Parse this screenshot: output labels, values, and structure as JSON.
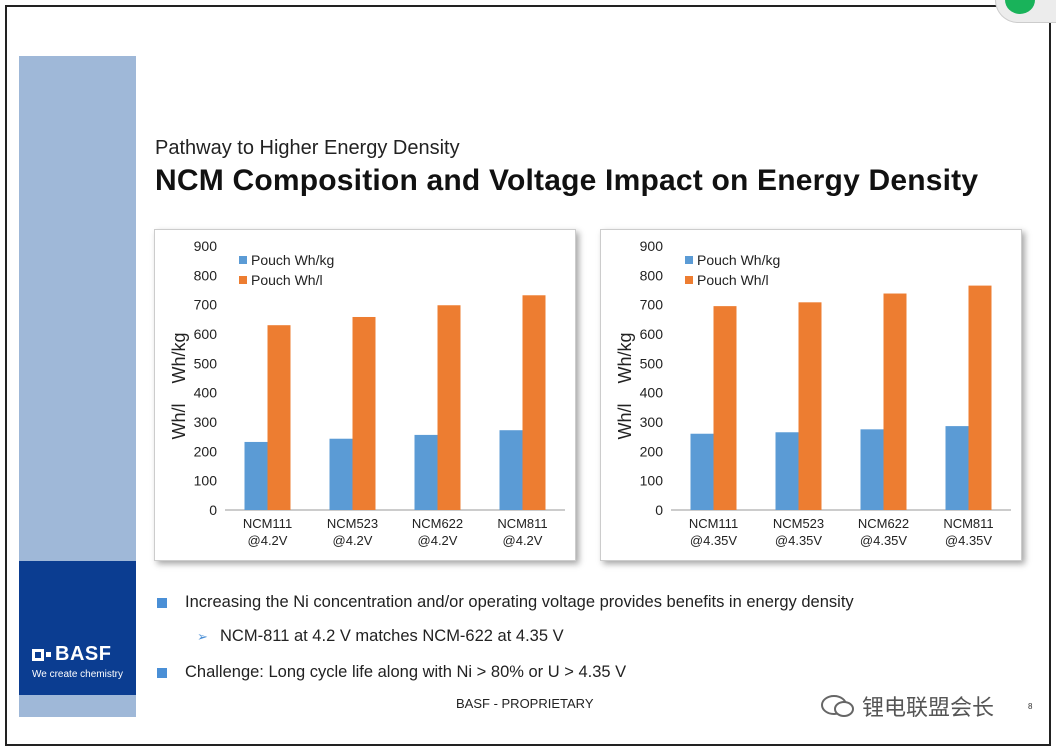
{
  "slide": {
    "subtitle": "Pathway to Higher Energy Density",
    "title": "NCM Composition and Voltage Impact on Energy Density",
    "logo_name": "BASF",
    "logo_tagline": "We create chemistry",
    "footer": "BASF - PROPRIETARY",
    "watermark": "锂电联盟会长",
    "page_number": "8"
  },
  "bullets": [
    {
      "level": 1,
      "text": "Increasing the Ni concentration and/or operating voltage provides benefits in energy density"
    },
    {
      "level": 2,
      "text": "NCM-811 at 4.2 V matches NCM-622 at 4.35 V"
    },
    {
      "level": 1,
      "text": "Challenge: Long cycle life along with Ni > 80% or U > 4.35 V"
    }
  ],
  "colors": {
    "wh_kg": "#5b9bd5",
    "wh_l": "#ed7d31",
    "brand_dark": "#0b3d91",
    "brand_light": "#9fb8d8"
  },
  "chart_data": [
    {
      "type": "bar",
      "categories": [
        "NCM111\n@4.2V",
        "NCM523\n@4.2V",
        "NCM622\n@4.2V",
        "NCM811\n@4.2V"
      ],
      "series": [
        {
          "name": "Pouch Wh/kg",
          "values": [
            232,
            243,
            256,
            272
          ]
        },
        {
          "name": "Pouch Wh/l",
          "values": [
            630,
            658,
            698,
            732
          ]
        }
      ],
      "ylabel": "Wh/l    Wh/kg",
      "ylim": [
        0,
        900
      ],
      "yticks": [
        0,
        100,
        200,
        300,
        400,
        500,
        600,
        700,
        800,
        900
      ],
      "grid": false,
      "legend": "top-left"
    },
    {
      "type": "bar",
      "categories": [
        "NCM111\n@4.35V",
        "NCM523\n@4.35V",
        "NCM622\n@4.35V",
        "NCM811\n@4.35V"
      ],
      "series": [
        {
          "name": "Pouch Wh/kg",
          "values": [
            260,
            265,
            275,
            286
          ]
        },
        {
          "name": "Pouch Wh/l",
          "values": [
            695,
            708,
            738,
            765
          ]
        }
      ],
      "ylabel": "Wh/l    Wh/kg",
      "ylim": [
        0,
        900
      ],
      "yticks": [
        0,
        100,
        200,
        300,
        400,
        500,
        600,
        700,
        800,
        900
      ],
      "grid": false,
      "legend": "top-left"
    }
  ]
}
